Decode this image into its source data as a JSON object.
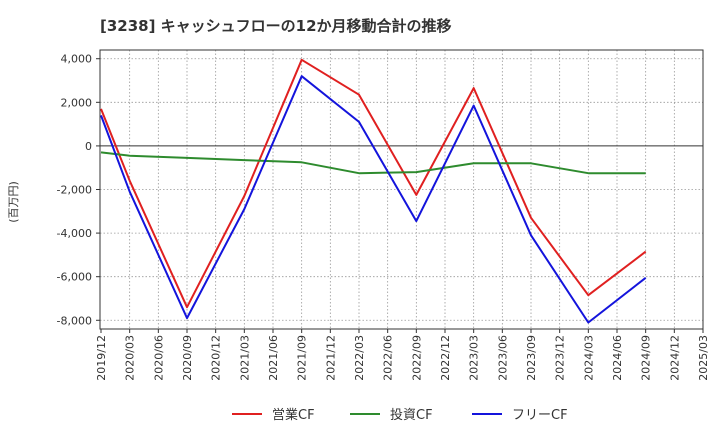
{
  "chart_data": {
    "type": "line",
    "title": "[3238]  キャッシュフローの12か月移動合計の推移",
    "ylabel": "(百万円)",
    "xlabel": "",
    "ylim": [
      -8400,
      4400
    ],
    "yticks": [
      4000,
      2000,
      0,
      -2000,
      -4000,
      -6000,
      -8000
    ],
    "ytick_labels": [
      "4,000",
      "2,000",
      "0",
      "-2,000",
      "-4,000",
      "-6,000",
      "-8,000"
    ],
    "categories": [
      "2019/12",
      "2020/03",
      "2020/06",
      "2020/09",
      "2020/12",
      "2021/03",
      "2021/06",
      "2021/09",
      "2021/12",
      "2022/03",
      "2022/06",
      "2022/09",
      "2022/12",
      "2023/03",
      "2023/06",
      "2023/09",
      "2023/12",
      "2024/03",
      "2024/06",
      "2024/09",
      "2024/12",
      "2025/03"
    ],
    "grid": true,
    "legend_position": "bottom-center",
    "series": [
      {
        "name": "営業CF",
        "color": "#e02020",
        "values": [
          1700,
          -1600,
          null,
          -7400,
          null,
          -2300,
          null,
          3950,
          null,
          2350,
          null,
          -2250,
          null,
          2650,
          null,
          -3300,
          null,
          -6850,
          null,
          -4850,
          null,
          null
        ]
      },
      {
        "name": "投資CF",
        "color": "#2e8b2e",
        "values": [
          -300,
          -450,
          null,
          -550,
          null,
          -650,
          null,
          -750,
          null,
          -1250,
          null,
          -1200,
          null,
          -800,
          null,
          -800,
          null,
          -1250,
          null,
          -1250,
          null,
          null
        ]
      },
      {
        "name": "フリーCF",
        "color": "#1414dc",
        "values": [
          1400,
          -2100,
          null,
          -7900,
          null,
          -2900,
          null,
          3200,
          null,
          1100,
          null,
          -3450,
          null,
          1850,
          null,
          -4100,
          null,
          -8100,
          null,
          -6050,
          null,
          null
        ]
      }
    ]
  }
}
